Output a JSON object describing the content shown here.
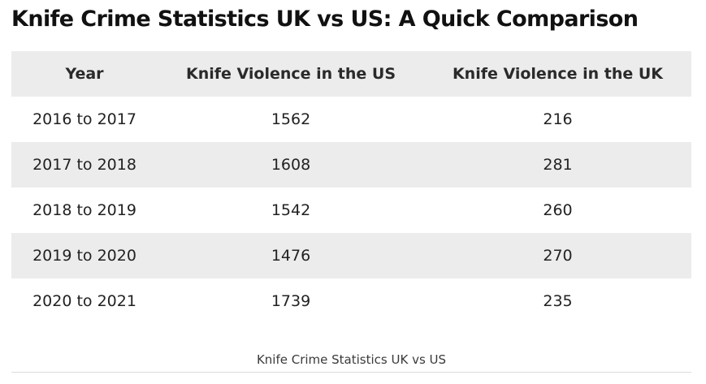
{
  "title": "Knife Crime Statistics UK vs US: A Quick Comparison",
  "table": {
    "headers": [
      "Year",
      "Knife Violence in the US",
      "Knife Violence in the UK"
    ],
    "rows": [
      [
        "2016 to 2017",
        "1562",
        "216"
      ],
      [
        "2017 to 2018",
        "1608",
        "281"
      ],
      [
        "2018 to 2019",
        "1542",
        "260"
      ],
      [
        "2019 to 2020",
        "1476",
        "270"
      ],
      [
        "2020 to 2021",
        "1739",
        "235"
      ]
    ]
  },
  "caption": "Knife Crime Statistics UK vs US"
}
